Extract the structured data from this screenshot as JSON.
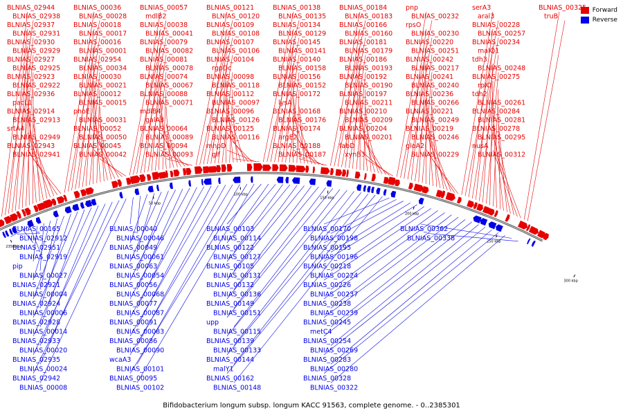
{
  "legend": {
    "forward": {
      "label": "Forward",
      "color": "#e60000"
    },
    "reverse": {
      "label": "Reverse",
      "color": "#0000e6"
    }
  },
  "caption": "Bifidobacterium longum subsp. longum KACC 91563, complete genome. - 0..2385301",
  "axis": {
    "ticks": [
      "2350 kbp",
      "50 kbp",
      "100 kbp",
      "150 kbp",
      "200 kbp",
      "250 kbp",
      "300 kbp"
    ],
    "tick_positions_kbp": [
      2350,
      50,
      100,
      150,
      200,
      250,
      300
    ]
  },
  "forward_labels": [
    "BLNIAS_02944",
    "BLNIAS_02938",
    "BLNIAS_02937",
    "BLNIAS_02931",
    "BLNIAS_02930",
    "BLNIAS_02929",
    "BLNIAS_02927",
    "BLNIAS_02925",
    "BLNIAS_02923",
    "BLNIAS_02922",
    "BLNIAS_02936",
    "pacL1",
    "BLNIAS_02914",
    "BLNIAS_02913",
    "srtA4",
    "BLNIAS_02949",
    "BLNIAS_02943",
    "BLNIAS_02941",
    "BLNIAS_00036",
    "BLNIAS_00028",
    "BLNIAS_00018",
    "BLNIAS_00017",
    "BLNIAS_00016",
    "BLNIAS_00001",
    "BLNIAS_02954",
    "BLNIAS_00034",
    "BLNIAS_00030",
    "BLNIAS_00021",
    "BLNIAS_00012",
    "BLNIAS_00015",
    "phoE",
    "BLNIAS_00031",
    "BLNIAS_00052",
    "BLNIAS_00050",
    "BLNIAS_00045",
    "BLNIAS_00042",
    "BLNIAS_00057",
    "mdlB2",
    "BLNIAS_00038",
    "BLNIAS_00041",
    "BLNIAS_00079",
    "BLNIAS_00082",
    "BLNIAS_00081",
    "BLNIAS_00078",
    "BLNIAS_00074",
    "BLNIAS_00067",
    "BLNIAS_00088",
    "BLNIAS_00071",
    "mdlB4",
    "galA3",
    "BLNIAS_00064",
    "BLNIAS_00089",
    "BLNIAS_00094",
    "BLNIAS_00093",
    "BLNIAS_00121",
    "BLNIAS_00120",
    "BLNIAS_00109",
    "BLNIAS_00108",
    "BLNIAS_00107",
    "BLNIAS_00106",
    "BLNIAS_00104",
    "rgpDc",
    "BLNIAS_00098",
    "BLNIAS_00118",
    "BLNIAS_00112",
    "BLNIAS_00097",
    "BLNIAS_00096",
    "BLNIAS_00126",
    "BLNIAS_00125",
    "BLNIAS_00116",
    "mhpD",
    "glf",
    "BLNIAS_00138",
    "BLNIAS_00135",
    "BLNIAS_00134",
    "BLNIAS_00129",
    "BLNIAS_00145",
    "BLNIAS_00141",
    "BLNIAS_00140",
    "BLNIAS_00158",
    "BLNIAS_00156",
    "BLNIAS_00152",
    "BLNIAS_00172",
    "lysA",
    "BLNIAS_00168",
    "BLNIAS_00176",
    "BLNIAS_00174",
    "argE2",
    "BLNIAS_00188",
    "BLNIAS_00187",
    "BLNIAS_00184",
    "BLNIAS_00183",
    "BLNIAS_00166",
    "BLNIAS_00160",
    "BLNIAS_00181",
    "BLNIAS_00179",
    "BLNIAS_00186",
    "BLNIAS_00193",
    "BLNIAS_00192",
    "BLNIAS_00190",
    "BLNIAS_00197",
    "BLNIAS_00211",
    "BLNIAS_00210",
    "BLNIAS_00209",
    "BLNIAS_00204",
    "BLNIAS_00201",
    "fabD",
    "xynB3",
    "pnp",
    "BLNIAS_00232",
    "rpsO",
    "BLNIAS_00230",
    "BLNIAS_00220",
    "BLNIAS_00251",
    "BLNIAS_00242",
    "BLNIAS_00217",
    "BLNIAS_00241",
    "BLNIAS_00240",
    "BLNIAS_00236",
    "BLNIAS_00266",
    "BLNIAS_00221",
    "BLNIAS_00249",
    "BLNIAS_00219",
    "BLNIAS_00246",
    "gloA2",
    "BLNIAS_00229",
    "serA3",
    "aral3",
    "BLNIAS_00228",
    "BLNIAS_00257",
    "BLNIAS_00234",
    "malQ1",
    "tdh3",
    "BLNIAS_00248",
    "BLNIAS_00275",
    "rplO",
    "tdh2",
    "BLNIAS_00261",
    "BLNIAS_00284",
    "BLNIAS_00281",
    "BLNIAS_00278",
    "BLNIAS_00295",
    "nusA",
    "BLNIAS_00312",
    "BLNIAS_00325",
    "truB"
  ],
  "reverse_labels": [
    "BLNIAS_00165",
    "BLNIAS_02912",
    "BLNIAS_02951",
    "BLNIAS_02919",
    "pip",
    "BLNIAS_00027",
    "BLNIAS_02921",
    "BLNIAS_00004",
    "BLNIAS_02924",
    "BLNIAS_00006",
    "BLNIAS_02928",
    "BLNIAS_00014",
    "BLNIAS_02933",
    "BLNIAS_00020",
    "BLNIAS_02935",
    "BLNIAS_00024",
    "BLNIAS_02942",
    "BLNIAS_00008",
    "BLNIAS_00040",
    "BLNIAS_00046",
    "BLNIAS_00049",
    "BLNIAS_00061",
    "BLNIAS_00063",
    "BLNIAS_00054",
    "BLNIAS_00056",
    "BLNIAS_00068",
    "BLNIAS_00077",
    "BLNIAS_00087",
    "BLNIAS_00091",
    "BLNIAS_00083",
    "BLNIAS_00086",
    "BLNIAS_00090",
    "wcaA3",
    "BLNIAS_00101",
    "BLNIAS_00095",
    "BLNIAS_00102",
    "BLNIAS_00103",
    "BLNIAS_00114",
    "BLNIAS_00122",
    "BLNIAS_00127",
    "BLNIAS_00105",
    "BLNIAS_00131",
    "BLNIAS_00132",
    "BLNIAS_00136",
    "BLNIAS_00149",
    "BLNIAS_00151",
    "upp",
    "BLNIAS_00115",
    "BLNIAS_00139",
    "BLNIAS_00133",
    "BLNIAS_00144",
    "malY1",
    "BLNIAS_00162",
    "BLNIAS_00148",
    "BLNIAS_00170",
    "BLNIAS_00198",
    "BLNIAS_00195",
    "BLNIAS_00196",
    "BLNIAS_00218",
    "BLNIAS_00224",
    "BLNIAS_00226",
    "BLNIAS_00237",
    "BLNIAS_00238",
    "BLNIAS_00239",
    "BLNIAS_00245",
    "metC4",
    "BLNIAS_00254",
    "BLNIAS_00269",
    "BLNIAS_00283",
    "BLNIAS_00280",
    "BLNIAS_00328",
    "BLNIAS_00322",
    "BLNIAS_00362",
    "BLNIAS_00338"
  ]
}
